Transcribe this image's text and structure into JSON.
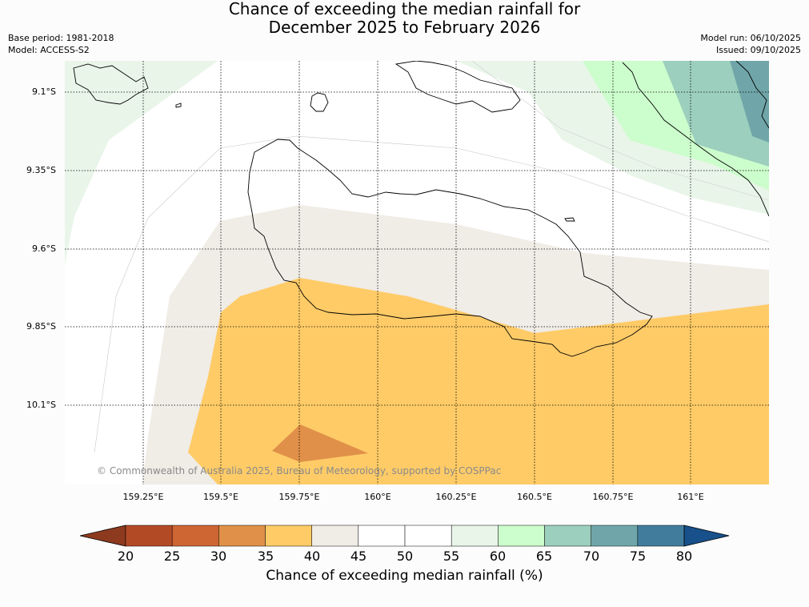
{
  "title": {
    "line1": "Chance of exceeding the median rainfall for",
    "line2": "December 2025 to February 2026"
  },
  "meta": {
    "base_period": "Base period: 1981-2018",
    "model": "Model: ACCESS-S2",
    "model_run": "Model run: 06/10/2025",
    "issued": "Issued: 09/10/2025"
  },
  "map": {
    "lat_labels": [
      "9.1°S",
      "9.35°S",
      "9.6°S",
      "9.85°S",
      "10.1°S"
    ],
    "lon_labels": [
      "159.25°E",
      "159.5°E",
      "159.75°E",
      "160°E",
      "160.25°E",
      "160.5°E",
      "160.75°E",
      "161°E"
    ],
    "copyright": "© Commonwealth of Australia 2025, Bureau of Meteorology, supported by COSPPac"
  },
  "colorbar": {
    "ticks": [
      "20",
      "25",
      "30",
      "35",
      "40",
      "45",
      "50",
      "55",
      "60",
      "65",
      "70",
      "75",
      "80"
    ],
    "colors": [
      "#8e3a1e",
      "#b34a26",
      "#ce6634",
      "#e09048",
      "#ffcb67",
      "#f0ece6",
      "#ffffff",
      "#ffffff",
      "#e9f5e9",
      "#ccfdcc",
      "#9ccfbd",
      "#70a6a9",
      "#417c9d",
      "#17508a"
    ],
    "label": "Chance of exceeding median rainfall (%)"
  }
}
